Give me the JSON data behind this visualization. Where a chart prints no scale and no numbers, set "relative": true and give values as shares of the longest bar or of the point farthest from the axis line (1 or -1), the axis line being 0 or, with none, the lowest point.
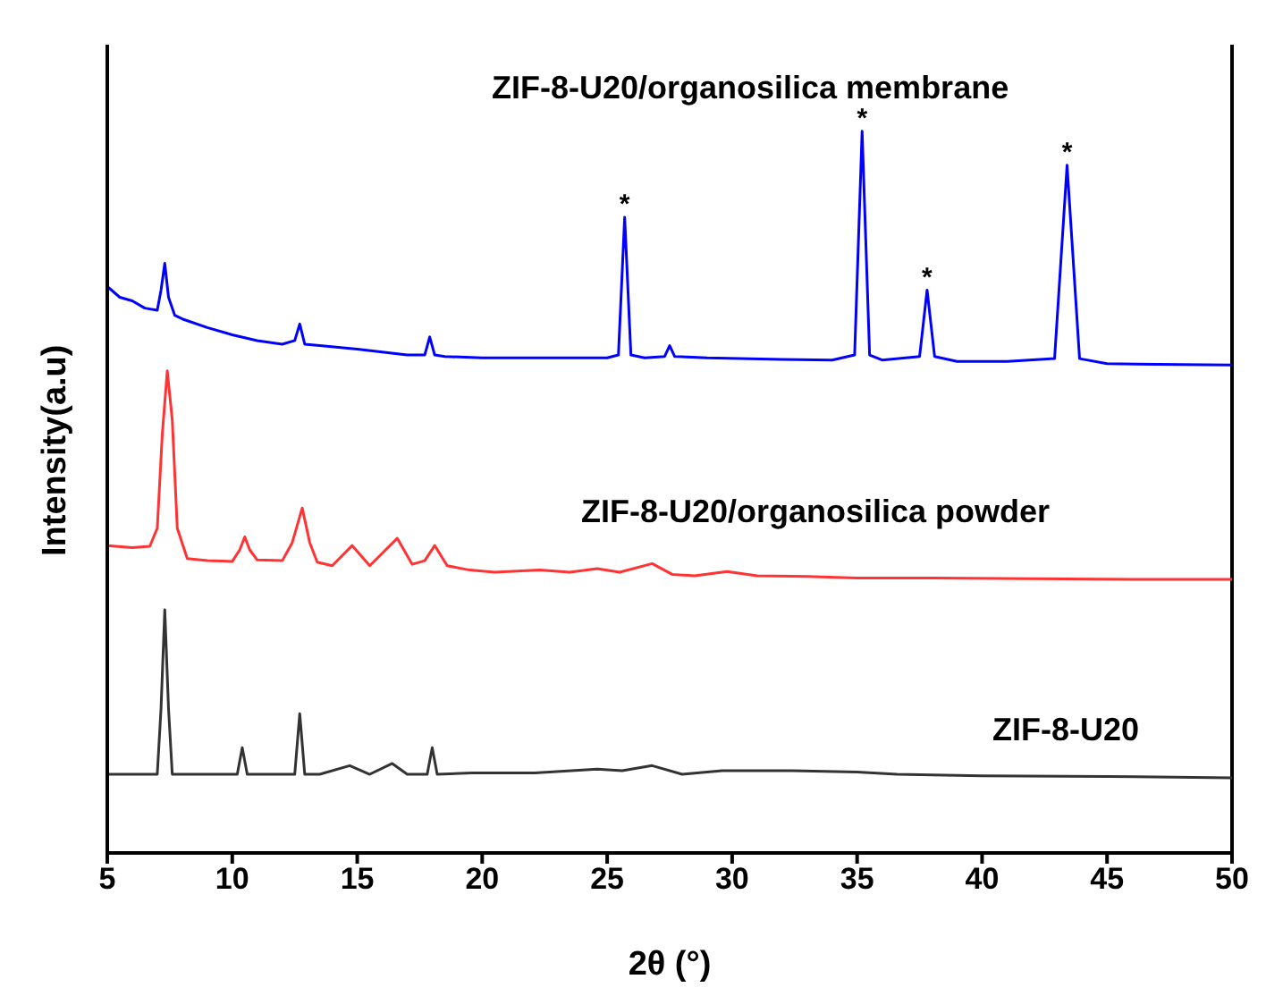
{
  "chart_data": {
    "type": "line",
    "relative": true,
    "xlabel": "2θ (°)",
    "ylabel": "Intensity(a.u)",
    "xlim": [
      5,
      50
    ],
    "xticks": [
      5,
      10,
      15,
      20,
      25,
      30,
      35,
      40,
      45,
      50
    ],
    "legend": false,
    "grid": false,
    "marker": "none",
    "line_style": "solid",
    "series": [
      {
        "name": "ZIF-8-U20/organosilica membrane",
        "color": "#0000ff",
        "x": [
          5,
          5.5,
          6,
          6.5,
          7,
          7.15,
          7.3,
          7.45,
          7.7,
          8,
          9,
          10,
          11,
          12,
          12.5,
          12.7,
          12.9,
          13.5,
          15,
          17,
          17.7,
          17.9,
          18.1,
          18.5,
          20,
          22,
          24,
          25,
          25.45,
          25.7,
          25.95,
          26.5,
          27.3,
          27.5,
          27.7,
          29,
          32,
          34,
          34.9,
          35.2,
          35.5,
          36,
          37.5,
          37.8,
          38.1,
          39,
          41,
          42.9,
          43.4,
          43.9,
          45,
          47,
          50
        ],
        "values": [
          0.785,
          0.77,
          0.765,
          0.755,
          0.752,
          0.78,
          0.817,
          0.77,
          0.745,
          0.74,
          0.728,
          0.718,
          0.71,
          0.705,
          0.71,
          0.733,
          0.705,
          0.703,
          0.698,
          0.69,
          0.69,
          0.715,
          0.69,
          0.688,
          0.686,
          0.686,
          0.686,
          0.686,
          0.69,
          0.881,
          0.69,
          0.686,
          0.688,
          0.703,
          0.688,
          0.686,
          0.684,
          0.683,
          0.69,
          1,
          0.69,
          0.683,
          0.688,
          0.78,
          0.688,
          0.681,
          0.681,
          0.685,
          0.953,
          0.685,
          0.678,
          0.677,
          0.676
        ]
      },
      {
        "name": "ZIF-8-U20/organosilica powder",
        "color": "#ff3333",
        "x": [
          5,
          6,
          6.7,
          7.0,
          7.2,
          7.4,
          7.6,
          7.8,
          8.2,
          9,
          10,
          10.3,
          10.5,
          10.7,
          11,
          12,
          12.4,
          12.8,
          13.1,
          13.4,
          14,
          14.8,
          15.5,
          16.6,
          17.2,
          17.7,
          18.1,
          18.6,
          19.5,
          20.5,
          22.3,
          23.5,
          24.6,
          25.5,
          26.8,
          27.6,
          28.5,
          29.8,
          31,
          33,
          35,
          38,
          42,
          46,
          50
        ],
        "values": [
          0.426,
          0.423,
          0.425,
          0.45,
          0.58,
          0.668,
          0.6,
          0.45,
          0.408,
          0.405,
          0.404,
          0.42,
          0.438,
          0.42,
          0.406,
          0.405,
          0.43,
          0.478,
          0.43,
          0.403,
          0.398,
          0.426,
          0.398,
          0.436,
          0.4,
          0.405,
          0.426,
          0.398,
          0.392,
          0.389,
          0.392,
          0.389,
          0.394,
          0.389,
          0.401,
          0.386,
          0.384,
          0.39,
          0.384,
          0.383,
          0.381,
          0.381,
          0.38,
          0.379,
          0.379
        ]
      },
      {
        "name": "ZIF-8-U20",
        "color": "#333333",
        "x": [
          5,
          7,
          7.15,
          7.3,
          7.45,
          7.6,
          9,
          10.2,
          10.4,
          10.6,
          12,
          12.5,
          12.7,
          12.9,
          13.5,
          14.7,
          15.5,
          16.4,
          17,
          17.8,
          18.0,
          18.2,
          19.6,
          22.1,
          24.6,
          25.6,
          26.8,
          28,
          29.6,
          30.6,
          31.5,
          32.4,
          35,
          36.6,
          40,
          45,
          50
        ],
        "values": [
          0.109,
          0.109,
          0.2,
          0.337,
          0.2,
          0.109,
          0.109,
          0.109,
          0.146,
          0.109,
          0.109,
          0.109,
          0.193,
          0.109,
          0.109,
          0.121,
          0.109,
          0.124,
          0.109,
          0.109,
          0.146,
          0.109,
          0.111,
          0.111,
          0.116,
          0.114,
          0.121,
          0.109,
          0.114,
          0.114,
          0.114,
          0.114,
          0.112,
          0.109,
          0.107,
          0.106,
          0.104
        ]
      }
    ],
    "annotations": [
      {
        "text": "*",
        "x": 25.7,
        "y": 0.881
      },
      {
        "text": "*",
        "x": 35.2,
        "y": 1
      },
      {
        "text": "*",
        "x": 37.8,
        "y": 0.78
      },
      {
        "text": "*",
        "x": 43.4,
        "y": 0.953
      }
    ]
  }
}
